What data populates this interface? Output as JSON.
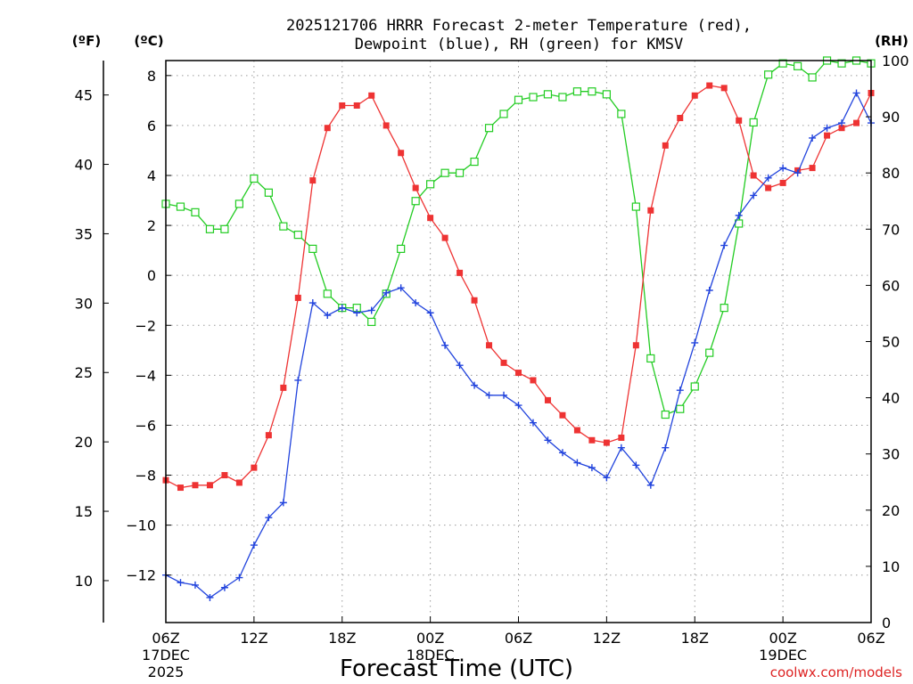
{
  "chart_data": {
    "type": "line",
    "title_line1": "2025121706 HRRR Forecast 2-meter Temperature (red),",
    "title_line2": "Dewpoint (blue), RH (green) for KMSV",
    "xlabel": "Forecast Time (UTC)",
    "credit": "coolwx.com/models",
    "units": {
      "f": "(ºF)",
      "c": "(ºC)",
      "rh": "(RH)"
    },
    "xlim": [
      0,
      48
    ],
    "ylim_c": [
      -13.9,
      8.6
    ],
    "ylim_rh": [
      0,
      100
    ],
    "y_ticks_c": [
      8,
      6,
      4,
      2,
      0,
      -2,
      -4,
      -6,
      -8,
      -10,
      -12
    ],
    "y_tick_labels_c": [
      "8",
      "6",
      "4",
      "2",
      "0",
      "−2",
      "−4",
      "−6",
      "−8",
      "−10",
      "−12"
    ],
    "y_ticks_f": [
      "45",
      "40",
      "35",
      "30",
      "25",
      "20",
      "15",
      "10"
    ],
    "y_ticks_rh": [
      "100",
      "90",
      "80",
      "70",
      "60",
      "50",
      "40",
      "30",
      "20",
      "10",
      "0"
    ],
    "x_ticks": [
      {
        "x": 0,
        "line1": "06Z",
        "line2": "17DEC",
        "line3": "2025"
      },
      {
        "x": 6,
        "line1": "12Z",
        "line2": "",
        "line3": ""
      },
      {
        "x": 12,
        "line1": "18Z",
        "line2": "",
        "line3": ""
      },
      {
        "x": 18,
        "line1": "00Z",
        "line2": "18DEC",
        "line3": ""
      },
      {
        "x": 24,
        "line1": "06Z",
        "line2": "",
        "line3": ""
      },
      {
        "x": 30,
        "line1": "12Z",
        "line2": "",
        "line3": ""
      },
      {
        "x": 36,
        "line1": "18Z",
        "line2": "",
        "line3": ""
      },
      {
        "x": 42,
        "line1": "00Z",
        "line2": "19DEC",
        "line3": ""
      },
      {
        "x": 48,
        "line1": "06Z",
        "line2": "",
        "line3": ""
      }
    ],
    "series": [
      {
        "name": "Temperature",
        "axis": "c",
        "color": "#ee3333",
        "marker": "filled-square",
        "values": [
          -8.2,
          -8.5,
          -8.4,
          -8.4,
          -8.0,
          -8.3,
          -7.7,
          -6.4,
          -4.5,
          -0.9,
          3.8,
          5.9,
          6.8,
          6.8,
          7.2,
          6.0,
          4.9,
          3.5,
          2.3,
          1.5,
          0.1,
          -1.0,
          -2.8,
          -3.5,
          -3.9,
          -4.2,
          -5.0,
          -5.6,
          -6.2,
          -6.6,
          -6.7,
          -6.5,
          -2.8,
          2.6,
          5.2,
          6.3,
          7.2,
          7.6,
          7.5,
          6.2,
          4.0,
          3.5,
          3.7,
          4.2,
          4.3,
          5.6,
          5.9,
          6.1,
          7.3
        ]
      },
      {
        "name": "Dewpoint",
        "axis": "c",
        "color": "#2244dd",
        "marker": "plus",
        "values": [
          -12.0,
          -12.3,
          -12.4,
          -12.9,
          -12.5,
          -12.1,
          -10.8,
          -9.7,
          -9.1,
          -4.2,
          -1.1,
          -1.6,
          -1.3,
          -1.5,
          -1.4,
          -0.7,
          -0.5,
          -1.1,
          -1.5,
          -2.8,
          -3.6,
          -4.4,
          -4.8,
          -4.8,
          -5.2,
          -5.9,
          -6.6,
          -7.1,
          -7.5,
          -7.7,
          -8.1,
          -6.9,
          -7.6,
          -8.4,
          -6.9,
          -4.6,
          -2.7,
          -0.6,
          1.2,
          2.4,
          3.2,
          3.9,
          4.3,
          4.1,
          5.5,
          5.9,
          6.1,
          7.3,
          6.1
        ]
      },
      {
        "name": "RH",
        "axis": "rh",
        "color": "#22cc22",
        "marker": "open-square",
        "values": [
          74.5,
          74,
          73,
          70,
          70,
          74.5,
          79,
          76.5,
          70.5,
          69,
          66.5,
          58.5,
          56,
          56,
          53.5,
          58.5,
          66.5,
          75,
          78,
          80,
          80,
          82,
          88,
          90.5,
          93,
          93.5,
          94,
          93.5,
          94.5,
          94.5,
          94,
          90.5,
          74,
          47,
          37,
          38,
          42,
          48,
          56,
          71,
          89,
          97.5,
          99.5,
          99,
          97,
          100,
          99.5,
          100,
          99.5
        ]
      }
    ]
  }
}
